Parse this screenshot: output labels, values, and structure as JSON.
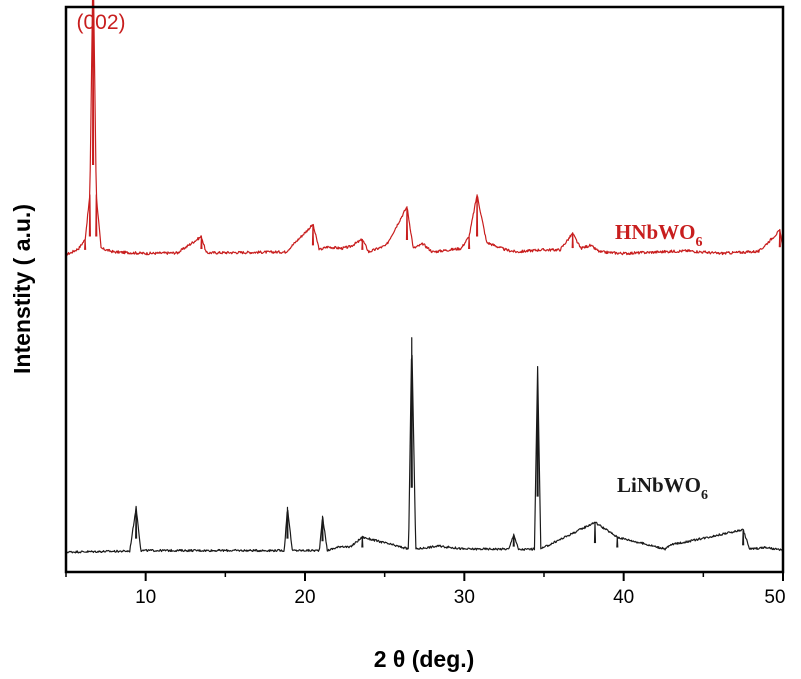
{
  "chart_data": {
    "type": "line",
    "title": "",
    "xlabel": "2 θ (deg.)",
    "ylabel": "Intenstity ( a.u.)",
    "xlim": [
      5,
      50
    ],
    "xticks": [
      10,
      20,
      30,
      40,
      50
    ],
    "y_axis_ticklabels": false,
    "grid": false,
    "legend": "none",
    "series": [
      {
        "name": "HNbWO6",
        "label_main": "HNbWO",
        "label_sub": "6",
        "color": "#c81e1e",
        "baseline": 1.0,
        "noise": 0.009,
        "points": [
          [
            5.0,
            0.0
          ],
          [
            5.3,
            0.005
          ],
          [
            5.8,
            0.02
          ],
          [
            6.2,
            0.05
          ],
          [
            6.5,
            0.2
          ],
          [
            6.7,
            1.0
          ],
          [
            6.9,
            0.2
          ],
          [
            7.2,
            0.02
          ],
          [
            8.0,
            0.008
          ],
          [
            10.0,
            0.003
          ],
          [
            12.0,
            0.005
          ],
          [
            13.5,
            0.06
          ],
          [
            13.8,
            0.005
          ],
          [
            18.8,
            0.008
          ],
          [
            20.5,
            0.1
          ],
          [
            20.9,
            0.015
          ],
          [
            21.4,
            0.025
          ],
          [
            22.3,
            0.02
          ],
          [
            22.8,
            0.025
          ],
          [
            23.6,
            0.05
          ],
          [
            24.0,
            0.008
          ],
          [
            25.1,
            0.03
          ],
          [
            26.4,
            0.16
          ],
          [
            26.8,
            0.02
          ],
          [
            27.4,
            0.035
          ],
          [
            28.0,
            0.008
          ],
          [
            29.8,
            0.02
          ],
          [
            30.3,
            0.06
          ],
          [
            30.8,
            0.2
          ],
          [
            31.4,
            0.04
          ],
          [
            32.6,
            0.015
          ],
          [
            33.3,
            0.008
          ],
          [
            34.7,
            0.015
          ],
          [
            36.0,
            0.015
          ],
          [
            36.8,
            0.07
          ],
          [
            37.3,
            0.02
          ],
          [
            37.9,
            0.03
          ],
          [
            38.5,
            0.008
          ],
          [
            40.0,
            0.003
          ],
          [
            44.0,
            0.012
          ],
          [
            46.0,
            0.003
          ],
          [
            48.5,
            0.01
          ],
          [
            49.8,
            0.08
          ],
          [
            50.0,
            0.02
          ]
        ]
      },
      {
        "name": "LiNbWO6",
        "label_main": "LiNbWO",
        "label_sub": "6",
        "color": "#1a1a1a",
        "baseline": 0.0,
        "noise": 0.007,
        "points": [
          [
            5.0,
            0.0
          ],
          [
            9.0,
            0.003
          ],
          [
            9.4,
            0.15
          ],
          [
            9.7,
            0.005
          ],
          [
            18.7,
            0.005
          ],
          [
            18.9,
            0.15
          ],
          [
            19.2,
            0.005
          ],
          [
            20.9,
            0.005
          ],
          [
            21.1,
            0.12
          ],
          [
            21.4,
            0.005
          ],
          [
            22.3,
            0.02
          ],
          [
            22.8,
            0.015
          ],
          [
            23.6,
            0.05
          ],
          [
            26.5,
            0.01
          ],
          [
            26.7,
            0.72
          ],
          [
            26.95,
            0.01
          ],
          [
            28.4,
            0.02
          ],
          [
            30.0,
            0.01
          ],
          [
            32.8,
            0.01
          ],
          [
            33.1,
            0.06
          ],
          [
            33.4,
            0.008
          ],
          [
            34.4,
            0.01
          ],
          [
            34.6,
            0.62
          ],
          [
            34.8,
            0.01
          ],
          [
            38.2,
            0.1
          ],
          [
            39.6,
            0.05
          ],
          [
            42.6,
            0.01
          ],
          [
            43.0,
            0.025
          ],
          [
            44.0,
            0.035
          ],
          [
            47.5,
            0.075
          ],
          [
            47.9,
            0.01
          ],
          [
            48.9,
            0.015
          ],
          [
            50.0,
            0.005
          ]
        ]
      }
    ],
    "annotations": [
      {
        "text": "(002)",
        "color": "#c81e1e",
        "x": 6.7
      }
    ]
  }
}
